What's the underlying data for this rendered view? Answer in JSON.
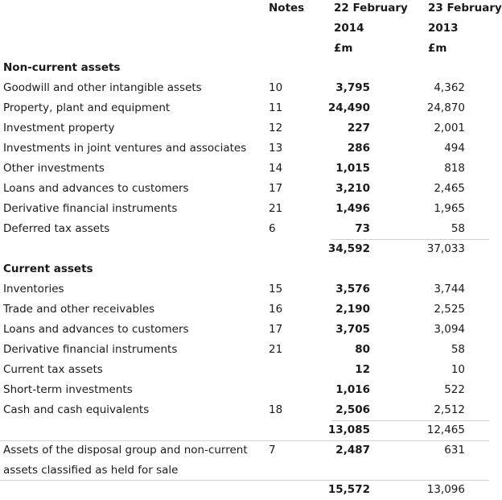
{
  "header": {
    "notes": "Notes",
    "col1_line1": "22 February",
    "col1_line2": "2014",
    "col1_unit": "£m",
    "col2_line1": "23 February",
    "col2_line2": "2013",
    "col2_unit": "£m"
  },
  "sections": {
    "non_current": {
      "title": "Non-current assets",
      "rows": [
        {
          "label": "Goodwill and other intangible assets",
          "note": "10",
          "v2014": "3,795",
          "v2013": "4,362"
        },
        {
          "label": "Property, plant and equipment",
          "note": "11",
          "v2014": "24,490",
          "v2013": "24,870"
        },
        {
          "label": "Investment property",
          "note": "12",
          "v2014": "227",
          "v2013": "2,001"
        },
        {
          "label": "Investments in joint ventures and associates",
          "note": "13",
          "v2014": "286",
          "v2013": "494"
        },
        {
          "label": "Other investments",
          "note": "14",
          "v2014": "1,015",
          "v2013": "818"
        },
        {
          "label": "Loans and advances to customers",
          "note": "17",
          "v2014": "3,210",
          "v2013": "2,465"
        },
        {
          "label": "Derivative financial instruments",
          "note": "21",
          "v2014": "1,496",
          "v2013": "1,965"
        },
        {
          "label": "Deferred tax assets",
          "note": "6",
          "v2014": "73",
          "v2013": "58"
        }
      ],
      "total_2014": "34,592",
      "total_2013": "37,033"
    },
    "current": {
      "title": "Current assets",
      "rows": [
        {
          "label": "Inventories",
          "note": "15",
          "v2014": "3,576",
          "v2013": "3,744"
        },
        {
          "label": "Trade and other receivables",
          "note": "16",
          "v2014": "2,190",
          "v2013": "2,525"
        },
        {
          "label": "Loans and advances to customers",
          "note": "17",
          "v2014": "3,705",
          "v2013": "3,094"
        },
        {
          "label": "Derivative financial instruments",
          "note": "21",
          "v2014": "80",
          "v2013": "58"
        },
        {
          "label": "Current tax assets",
          "note": "",
          "v2014": "12",
          "v2013": "10"
        },
        {
          "label": "Short-term investments",
          "note": "",
          "v2014": "1,016",
          "v2013": "522"
        },
        {
          "label": "Cash and cash equivalents",
          "note": "18",
          "v2014": "2,506",
          "v2013": "2,512"
        }
      ],
      "subtotal_2014": "13,085",
      "subtotal_2013": "12,465",
      "disposal": {
        "label_line1": "Assets of the disposal group and non-current",
        "label_line2": "assets classified as held for sale",
        "note": "7",
        "v2014": "2,487",
        "v2013": "631"
      },
      "total_2014": "15,572",
      "total_2013": "13,096"
    }
  }
}
